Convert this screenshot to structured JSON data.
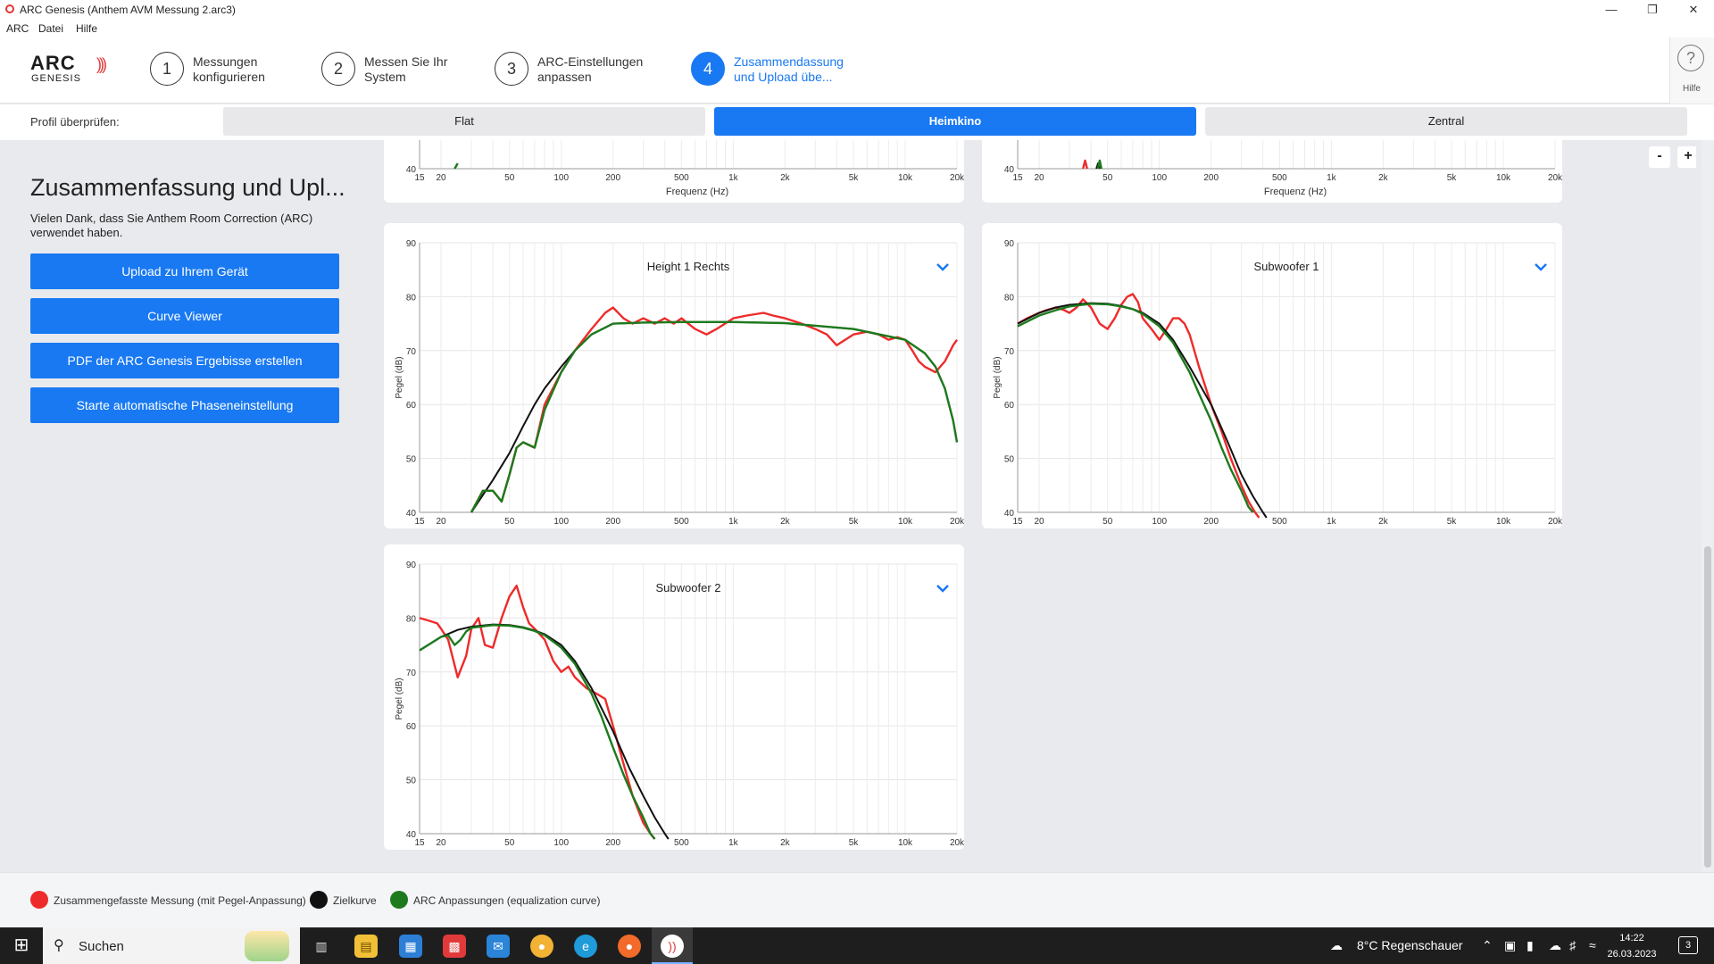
{
  "window": {
    "title": "ARC Genesis (Anthem AVM Messung 2.arc3)"
  },
  "menu": [
    "ARC",
    "Datei",
    "Hilfe"
  ],
  "logo": {
    "main": "ARC",
    "sub": "GENESIS"
  },
  "steps": [
    {
      "num": "1",
      "line1": "Messungen",
      "line2": "konfigurieren"
    },
    {
      "num": "2",
      "line1": "Messen Sie Ihr",
      "line2": "System"
    },
    {
      "num": "3",
      "line1": "ARC-Einstellungen",
      "line2": "anpassen"
    },
    {
      "num": "4",
      "line1": "Zusammendassung",
      "line2": "und Upload übe..."
    }
  ],
  "help": {
    "label": "Hilfe"
  },
  "profile": {
    "label": "Profil überprüfen:",
    "tabs": [
      "Flat",
      "Heimkino",
      "Zentral"
    ],
    "active": "Heimkino"
  },
  "summary": {
    "heading": "Zusammenfassung und Upl...",
    "thanks": "Vielen Dank, dass Sie Anthem Room Correction (ARC) verwendet haben.",
    "buttons": [
      "Upload zu Ihrem Gerät",
      "Curve Viewer",
      "PDF der ARC Genesis Ergebisse erstellen",
      "Starte automatische Phaseneinstellung"
    ]
  },
  "zoom": {
    "minus": "-",
    "plus": "+"
  },
  "axis": {
    "xlabel": "Frequenz (Hz)",
    "ylabel": "Pegel (dB)",
    "xticks": [
      "15",
      "20",
      "50",
      "100",
      "200",
      "500",
      "1k",
      "2k",
      "5k",
      "10k",
      "20k"
    ],
    "yticks": [
      "40",
      "50",
      "60",
      "70",
      "80",
      "90"
    ]
  },
  "colors": {
    "measured": "#ee2b2b",
    "target": "#111111",
    "eq": "#1d7a1d",
    "accent": "#1979f2"
  },
  "legend": [
    {
      "label": "Zusammengefasste Messung (mit Pegel-Anpassung)",
      "color": "#ee2b2b"
    },
    {
      "label": "Zielkurve",
      "color": "#111111"
    },
    {
      "label": "ARC Anpassungen (equalization curve)",
      "color": "#1d7a1d"
    }
  ],
  "chart_data": [
    {
      "type": "line",
      "title": "Height 1 Rechts",
      "xlabel": "Frequenz (Hz)",
      "ylabel": "Pegel (dB)",
      "xscale": "log",
      "xlim": [
        15,
        20000
      ],
      "ylim": [
        40,
        90
      ],
      "grid": true,
      "series": [
        {
          "role": "measured",
          "x": [
            30,
            35,
            40,
            45,
            50,
            55,
            60,
            70,
            80,
            100,
            120,
            150,
            180,
            200,
            230,
            260,
            300,
            350,
            400,
            450,
            500,
            600,
            700,
            800,
            1000,
            1200,
            1500,
            1700,
            2000,
            2500,
            3000,
            3500,
            4000,
            5000,
            6000,
            7000,
            8000,
            9000,
            10000,
            11000,
            12000,
            13000,
            15000,
            17000,
            19000,
            20000
          ],
          "y": [
            40,
            44,
            44,
            42,
            47,
            52,
            53,
            52,
            60,
            66,
            70,
            74,
            77,
            78,
            76,
            75,
            76,
            75,
            76,
            75,
            76,
            74,
            73,
            74,
            76,
            76.5,
            77,
            76.5,
            76,
            75,
            74,
            73,
            71,
            73,
            73.5,
            73,
            72,
            72.5,
            72,
            70,
            68,
            67,
            66,
            68,
            71,
            72
          ]
        },
        {
          "role": "target",
          "x": [
            30,
            40,
            50,
            60,
            70,
            80,
            100,
            120,
            150,
            200,
            300,
            500,
            1000,
            2000,
            5000,
            10000,
            13000,
            15000,
            17000,
            19000,
            20000
          ],
          "y": [
            40,
            46,
            51,
            56,
            60,
            63,
            67,
            70,
            73,
            75,
            75.2,
            75.3,
            75.3,
            75.1,
            74,
            72,
            69.5,
            67,
            63,
            57,
            53
          ]
        },
        {
          "role": "eq",
          "x": [
            30,
            35,
            40,
            45,
            50,
            55,
            60,
            70,
            80,
            100,
            120,
            150,
            200,
            300,
            500,
            1000,
            2000,
            5000,
            10000,
            13000,
            15000,
            17000,
            19000,
            20000
          ],
          "y": [
            40,
            44,
            44,
            42,
            47,
            52,
            53,
            52,
            59,
            66,
            70,
            73,
            75,
            75.2,
            75.3,
            75.3,
            75.1,
            74,
            72,
            69.5,
            67,
            63,
            57,
            53
          ]
        }
      ]
    },
    {
      "type": "line",
      "title": "Subwoofer 1",
      "xlabel": "Frequenz (Hz)",
      "ylabel": "Pegel (dB)",
      "xscale": "log",
      "xlim": [
        15,
        20000
      ],
      "ylim": [
        40,
        90
      ],
      "grid": true,
      "series": [
        {
          "role": "measured",
          "x": [
            15,
            17,
            20,
            22,
            25,
            28,
            30,
            33,
            36,
            40,
            45,
            50,
            55,
            60,
            65,
            70,
            75,
            80,
            90,
            100,
            110,
            120,
            130,
            140,
            150,
            170,
            200,
            230,
            260,
            300,
            330,
            360,
            380
          ],
          "y": [
            75,
            76,
            77,
            77.5,
            78,
            77.5,
            77,
            78,
            79.5,
            78,
            75,
            74,
            76,
            78.5,
            80,
            80.5,
            79,
            76,
            74,
            72,
            74,
            76,
            76,
            75,
            73,
            67,
            60,
            55,
            50,
            45,
            42,
            40,
            39
          ]
        },
        {
          "role": "target",
          "x": [
            15,
            20,
            25,
            30,
            40,
            50,
            60,
            70,
            80,
            100,
            120,
            150,
            200,
            250,
            300,
            350,
            400,
            420
          ],
          "y": [
            75,
            77,
            78,
            78.5,
            78.8,
            78.7,
            78.3,
            77.7,
            77,
            75,
            72,
            67,
            60,
            53,
            47,
            43,
            40,
            39
          ]
        },
        {
          "role": "eq",
          "x": [
            15,
            20,
            25,
            30,
            40,
            50,
            60,
            70,
            80,
            100,
            120,
            150,
            170,
            200,
            230,
            260,
            300,
            330,
            350
          ],
          "y": [
            74.5,
            76.5,
            77.5,
            78.2,
            78.7,
            78.6,
            78.2,
            77.7,
            76.8,
            74.5,
            71.5,
            66,
            62,
            57,
            52,
            48,
            44,
            41,
            40
          ]
        }
      ]
    },
    {
      "type": "line",
      "title": "Subwoofer 2",
      "xlabel": "Frequenz (Hz)",
      "ylabel": "Pegel (dB)",
      "xscale": "log",
      "xlim": [
        15,
        20000
      ],
      "ylim": [
        40,
        90
      ],
      "grid": true,
      "series": [
        {
          "role": "measured",
          "x": [
            15,
            17,
            19,
            20,
            22,
            25,
            28,
            30,
            33,
            36,
            40,
            45,
            50,
            55,
            60,
            65,
            70,
            80,
            90,
            100,
            110,
            120,
            140,
            160,
            180,
            200,
            230,
            260,
            300,
            330,
            350
          ],
          "y": [
            80,
            79.5,
            79,
            78,
            76,
            69,
            73,
            78,
            80,
            75,
            74.5,
            80,
            84,
            86,
            82,
            79,
            78,
            76,
            72,
            70,
            71,
            69,
            67,
            66,
            65,
            60,
            53,
            47,
            42,
            40,
            39
          ]
        },
        {
          "role": "target",
          "x": [
            15,
            20,
            25,
            30,
            40,
            50,
            60,
            70,
            80,
            100,
            120,
            150,
            200,
            250,
            300,
            350,
            400,
            420
          ],
          "y": [
            74,
            76.5,
            77.8,
            78.4,
            78.8,
            78.7,
            78.3,
            77.7,
            77,
            75,
            72,
            67,
            59,
            52,
            47,
            43,
            40,
            39
          ]
        },
        {
          "role": "eq",
          "x": [
            15,
            20,
            22,
            24,
            26,
            28,
            30,
            40,
            50,
            60,
            70,
            80,
            100,
            120,
            150,
            170,
            200,
            230,
            260,
            300,
            330,
            350
          ],
          "y": [
            74,
            76.5,
            76.8,
            75,
            76,
            77.5,
            78.2,
            78.7,
            78.6,
            78.2,
            77.6,
            76.8,
            74.5,
            71.5,
            66,
            62,
            56,
            51,
            47,
            43,
            40,
            39
          ]
        }
      ]
    },
    {
      "type": "line",
      "title": "",
      "xlabel": "Frequenz (Hz)",
      "ylabel": "",
      "xscale": "log",
      "xlim": [
        15,
        20000
      ],
      "ylim": [
        40,
        90
      ],
      "grid": true,
      "series": [
        {
          "role": "eq",
          "x": [
            24,
            25
          ],
          "y": [
            40,
            41
          ]
        }
      ]
    },
    {
      "type": "line",
      "title": "",
      "xlabel": "Frequenz (Hz)",
      "ylabel": "",
      "xscale": "log",
      "xlim": [
        15,
        20000
      ],
      "ylim": [
        40,
        90
      ],
      "grid": true,
      "series": [
        {
          "role": "measured",
          "x": [
            36,
            37,
            38
          ],
          "y": [
            40,
            41.5,
            40
          ]
        },
        {
          "role": "eq",
          "x": [
            44,
            45,
            46
          ],
          "y": [
            40,
            41.5,
            40
          ]
        },
        {
          "role": "target",
          "x": [
            43,
            44,
            45
          ],
          "y": [
            40,
            41,
            40
          ]
        }
      ]
    }
  ],
  "taskbar": {
    "search": "Suchen",
    "weather": "8°C  Regenschauer",
    "time": "14:22",
    "date": "26.03.2023",
    "notifications": "3"
  }
}
